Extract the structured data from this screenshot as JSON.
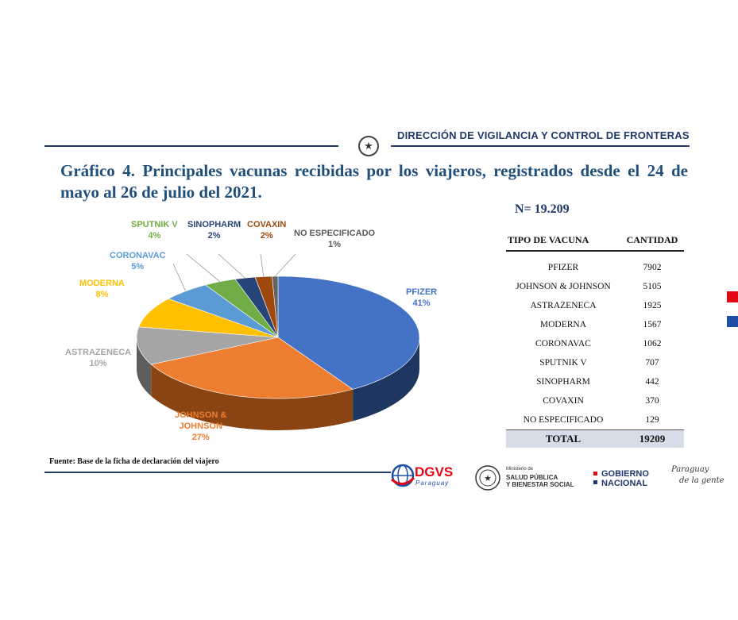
{
  "header": {
    "title": "DIRECCIÓN DE VIGILANCIA Y CONTROL DE FRONTERAS"
  },
  "chart_title": "Gráfico 4. Principales vacunas recibidas por los viajeros, registrados desde el 24 de mayo al 26 de julio del 2021.",
  "n_label": "N= 19.209",
  "table": {
    "headers": [
      "TIPO DE VACUNA",
      "CANTIDAD"
    ],
    "rows": [
      {
        "name": "PFIZER",
        "value": "7902"
      },
      {
        "name": "JOHNSON & JOHNSON",
        "value": "5105"
      },
      {
        "name": "ASTRAZENECA",
        "value": "1925"
      },
      {
        "name": "MODERNA",
        "value": "1567"
      },
      {
        "name": "CORONAVAC",
        "value": "1062"
      },
      {
        "name": "SPUTNIK V",
        "value": "707"
      },
      {
        "name": "SINOPHARM",
        "value": "442"
      },
      {
        "name": "COVAXIN",
        "value": "370"
      },
      {
        "name": "NO ESPECIFICADO",
        "value": "129"
      }
    ],
    "total_label": "TOTAL",
    "total_value": "19209"
  },
  "chart_data": {
    "type": "pie",
    "slices": [
      {
        "name": "PFIZER",
        "value": 7902,
        "pct": "41%",
        "color": "#4472c4",
        "side": "#1f3660",
        "label_color": "#4472c4"
      },
      {
        "name": "JOHNSON & JOHNSON",
        "value": 5105,
        "pct": "27%",
        "color": "#ed7d31",
        "side": "#8a4413",
        "label_color": "#ed7d31"
      },
      {
        "name": "ASTRAZENECA",
        "value": 1925,
        "pct": "10%",
        "color": "#a5a5a5",
        "side": "#5e5e5e",
        "label_color": "#a5a5a5"
      },
      {
        "name": "MODERNA",
        "value": 1567,
        "pct": "8%",
        "color": "#ffc000",
        "side": "#8f6b00",
        "label_color": "#ffc000"
      },
      {
        "name": "CORONAVAC",
        "value": 1062,
        "pct": "5%",
        "color": "#5b9bd5",
        "side": "#2d5a82",
        "label_color": "#5b9bd5"
      },
      {
        "name": "SPUTNIK V",
        "value": 707,
        "pct": "4%",
        "color": "#70ad47",
        "side": "#3d6425",
        "label_color": "#70ad47"
      },
      {
        "name": "SINOPHARM",
        "value": 442,
        "pct": "2%",
        "color": "#264478",
        "side": "#132240",
        "label_color": "#264478"
      },
      {
        "name": "COVAXIN",
        "value": 370,
        "pct": "2%",
        "color": "#9e480e",
        "side": "#54260a",
        "label_color": "#9e480e"
      },
      {
        "name": "NO ESPECIFICADO",
        "value": 129,
        "pct": "1%",
        "color": "#636363",
        "side": "#333333",
        "label_color": "#595959"
      }
    ],
    "labels": {
      "pfizer": [
        "PFIZER",
        "41%"
      ],
      "jj": [
        "JOHNSON &",
        "JOHNSON",
        "27%"
      ],
      "astra": [
        "ASTRAZENECA",
        "10%"
      ],
      "moderna": [
        "MODERNA",
        "8%"
      ],
      "coronavac": [
        "CORONAVAC",
        "5%"
      ],
      "sputnik": [
        "SPUTNIK V",
        "4%"
      ],
      "sinopharm": [
        "SINOPHARM",
        "2%"
      ],
      "covaxin": [
        "COVAXIN",
        "2%"
      ],
      "noesp": [
        "NO ESPECIFICADO",
        "1%"
      ]
    }
  },
  "footer": {
    "source": "Fuente: Base de la ficha de declaración del viajero",
    "dgvs": "DGVS",
    "dgvs_sub": "Paraguay",
    "ministerio_small": "Ministerio de",
    "ministerio_line1": "SALUD PÚBLICA",
    "ministerio_line2": "Y BIENESTAR SOCIAL",
    "gobierno_line1": "GOBIERNO",
    "gobierno_line2": "NACIONAL",
    "slogan_line1": "Paraguay",
    "slogan_line2": "de la gente"
  },
  "colors": {
    "navy": "#1f3a6b",
    "title_blue": "#1f4f7a",
    "red": "#e30613",
    "blue": "#1f4ea8"
  }
}
